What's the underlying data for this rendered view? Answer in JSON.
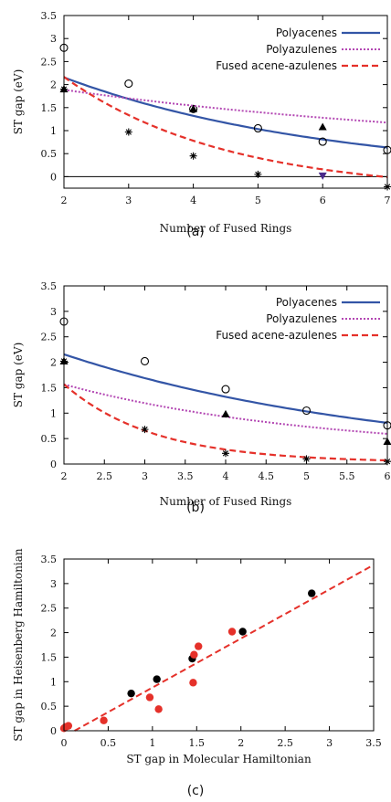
{
  "colors": {
    "polyacenes": "#3355a6",
    "polyazulenes": "#b347b3",
    "fused": "#e5312a",
    "black_point": "#000000",
    "red_point": "#e5312a",
    "zero_line": "#000000"
  },
  "chart_data": [
    {
      "id": "a",
      "type": "line",
      "caption": "(a)",
      "xlabel": "Number of Fused Rings",
      "ylabel": "ST gap (eV)",
      "xlim": [
        2,
        7
      ],
      "ylim": [
        -0.25,
        3.5
      ],
      "xticks": [
        "2",
        "3",
        "4",
        "5",
        "6",
        "7"
      ],
      "yticks": [
        "0",
        "0.5",
        "1",
        "1.5",
        "2",
        "2.5",
        "3",
        "3.5"
      ],
      "legend": [
        "Polyacenes",
        "Polyazulenes",
        "Fused acene-azulenes"
      ],
      "legend_position": "top-right",
      "zero_line": true,
      "series": [
        {
          "name": "Polyacenes",
          "style": "solid",
          "curve": {
            "a": 3.52,
            "b": 0.245,
            "c": 0.0
          },
          "markers": {
            "shape": "circle",
            "x": [
              2,
              3,
              4,
              5,
              6,
              7
            ],
            "y": [
              2.8,
              2.02,
              1.47,
              1.05,
              0.76,
              0.58
            ]
          }
        },
        {
          "name": "Polyazulenes",
          "style": "dotted",
          "curve": {
            "a": 1.85,
            "b": 0.144,
            "c": 0.5
          },
          "markers": {
            "shape": "triangle",
            "x": [
              2,
              4,
              6
            ],
            "y": [
              1.9,
              1.47,
              1.08
            ]
          }
        },
        {
          "name": "Fused acene-azulenes",
          "style": "dashed",
          "curve": {
            "a": 5.6,
            "b": 0.4,
            "c": -0.35
          },
          "markers": {
            "shape": "star",
            "x": [
              2,
              3,
              4,
              5,
              7
            ],
            "y": [
              1.9,
              0.97,
              0.45,
              0.05,
              -0.22
            ]
          }
        }
      ],
      "extra_points": [
        {
          "shape": "triangle-down",
          "x": 6,
          "y": 0.02,
          "color": "#4a2a8a"
        }
      ]
    },
    {
      "id": "b",
      "type": "line",
      "caption": "(b)",
      "xlabel": "Number of Fused Rings",
      "ylabel": "ST gap (eV)",
      "xlim": [
        2,
        6
      ],
      "ylim": [
        0,
        3.5
      ],
      "xticks": [
        "2",
        "2.5",
        "3",
        "3.5",
        "4",
        "4.5",
        "5",
        "5.5",
        "6"
      ],
      "yticks": [
        "0",
        "0.5",
        "1",
        "1.5",
        "2",
        "2.5",
        "3",
        "3.5"
      ],
      "legend": [
        "Polyacenes",
        "Polyazulenes",
        "Fused acene-azulenes"
      ],
      "legend_position": "top-right",
      "zero_line": false,
      "series": [
        {
          "name": "Polyacenes",
          "style": "solid",
          "curve": {
            "a": 3.52,
            "b": 0.245,
            "c": 0.0
          },
          "markers": {
            "shape": "circle",
            "x": [
              2,
              3,
              4,
              5,
              6
            ],
            "y": [
              2.8,
              2.02,
              1.47,
              1.05,
              0.76
            ]
          }
        },
        {
          "name": "Polyazulenes",
          "style": "dotted",
          "curve": {
            "a": 2.55,
            "b": 0.32,
            "c": 0.22
          },
          "markers": {
            "shape": "triangle",
            "x": [
              2,
              4,
              6
            ],
            "y": [
              2.02,
              0.98,
              0.44
            ]
          }
        },
        {
          "name": "Fused acene-azulenes",
          "style": "dashed",
          "curve": {
            "a": 9.3,
            "b": 0.9,
            "c": 0.03
          },
          "markers": {
            "shape": "star",
            "x": [
              2,
              3,
              4,
              5,
              6
            ],
            "y": [
              2.02,
              0.68,
              0.21,
              0.1,
              0.05
            ]
          }
        }
      ],
      "extra_points": []
    },
    {
      "id": "c",
      "type": "scatter",
      "caption": "(c)",
      "xlabel": "ST gap in Molecular Hamiltonian",
      "ylabel": "ST gap in Heisenberg Hamiltonian",
      "xlim": [
        0,
        3.5
      ],
      "ylim": [
        0,
        3.5
      ],
      "xticks": [
        "0",
        "0.5",
        "1",
        "1.5",
        "2",
        "2.5",
        "3",
        "3.5"
      ],
      "yticks": [
        "0",
        "0.5",
        "1",
        "1.5",
        "2",
        "2.5",
        "3",
        "3.5"
      ],
      "fit_line": {
        "style": "dashed",
        "slope": 1.0,
        "intercept": -0.12,
        "x_range": [
          0.1,
          3.5
        ]
      },
      "series": [
        {
          "name": "",
          "color": "black",
          "x": [
            2.8,
            2.02,
            1.45,
            1.05,
            0.76
          ],
          "y": [
            2.8,
            2.02,
            1.47,
            1.05,
            0.76
          ]
        },
        {
          "name": "",
          "color": "red",
          "x": [
            1.9,
            1.47,
            1.52,
            1.46,
            0.97,
            1.07,
            0.45,
            0.05,
            0.02,
            0.0
          ],
          "y": [
            2.02,
            1.55,
            1.72,
            0.98,
            0.68,
            0.44,
            0.21,
            0.1,
            0.08,
            0.05
          ]
        }
      ]
    }
  ]
}
